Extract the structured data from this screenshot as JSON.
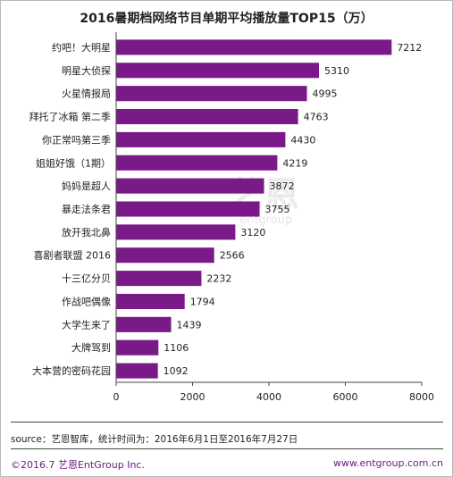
{
  "title": "2016暑期档网络节目单期平均播放量TOP15（万）",
  "source": "source：艺恩智库，统计时间为：2016年6月1日至2016年7月27日",
  "footer": {
    "copyright": "©2016.7  艺恩EntGroup Inc.",
    "website": "www.entgroup.com.cn"
  },
  "watermark": {
    "logo_text": "艺恩",
    "sub_text": "entgroup"
  },
  "colors": {
    "bar": "#7a1a88",
    "axis": "#444444",
    "footer_text": "#6a1b7e"
  },
  "chart_data": {
    "type": "bar",
    "orientation": "horizontal",
    "categories": [
      "约吧！大明星",
      "明星大侦探",
      "火星情报局",
      "拜托了冰箱 第二季",
      "你正常吗第三季",
      "姐姐好饿（1期）",
      "妈妈是超人",
      "暴走法条君",
      "放开我北鼻",
      "喜剧者联盟 2016",
      "十三亿分贝",
      "作战吧偶像",
      "大学生来了",
      "大牌驾到",
      "大本营的密码花园"
    ],
    "values": [
      7212,
      5310,
      4995,
      4763,
      4430,
      4219,
      3872,
      3755,
      3120,
      2566,
      2232,
      1794,
      1439,
      1106,
      1092
    ],
    "xlim": [
      0,
      8000
    ],
    "xticks": [
      0,
      2000,
      4000,
      6000,
      8000
    ],
    "grid": false,
    "legend": "none"
  }
}
